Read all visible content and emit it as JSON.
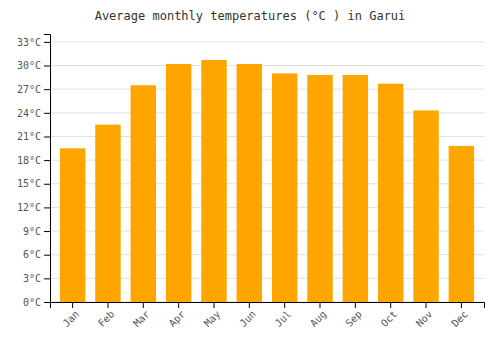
{
  "chart_data": {
    "type": "bar",
    "title": "Average monthly temperatures (°C ) in Garui",
    "categories": [
      "Jan",
      "Feb",
      "Mar",
      "Apr",
      "May",
      "Jun",
      "Jul",
      "Aug",
      "Sep",
      "Oct",
      "Nov",
      "Dec"
    ],
    "values": [
      19.5,
      22.5,
      27.5,
      30.2,
      30.7,
      30.2,
      29.0,
      28.8,
      28.8,
      27.7,
      24.3,
      19.8
    ],
    "color": "#FFA500",
    "ylim": [
      0,
      34
    ],
    "yticks": [
      {
        "value": 0,
        "label": "0°C"
      },
      {
        "value": 3,
        "label": "3°C"
      },
      {
        "value": 6,
        "label": "6°C"
      },
      {
        "value": 9,
        "label": "9°C"
      },
      {
        "value": 12,
        "label": "12°C"
      },
      {
        "value": 15,
        "label": "15°C"
      },
      {
        "value": 18,
        "label": "18°C"
      },
      {
        "value": 21,
        "label": "21°C"
      },
      {
        "value": 24,
        "label": "24°C"
      },
      {
        "value": 27,
        "label": "27°C"
      },
      {
        "value": 30,
        "label": "30°C"
      },
      {
        "value": 33,
        "label": "33°C"
      }
    ],
    "grid": true
  }
}
